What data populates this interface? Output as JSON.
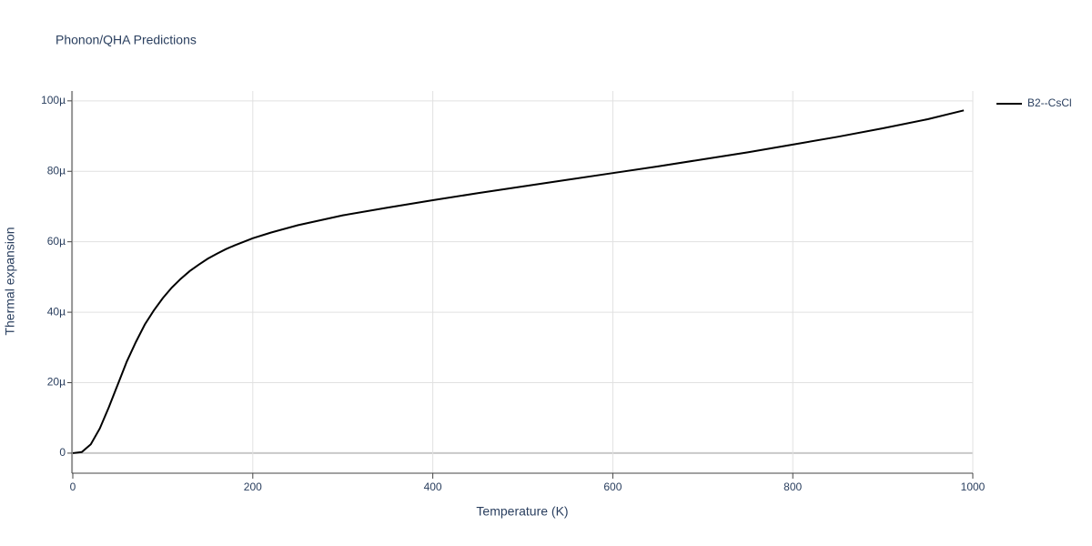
{
  "chart_data": {
    "type": "line",
    "title": "Phonon/QHA Predictions",
    "x_label": "Temperature (K)",
    "y_label": "Thermal expansion",
    "x": [
      0,
      10,
      20,
      30,
      40,
      50,
      60,
      70,
      80,
      90,
      100,
      110,
      120,
      130,
      140,
      150,
      160,
      170,
      180,
      190,
      200,
      220,
      250,
      300,
      350,
      400,
      450,
      500,
      550,
      600,
      650,
      700,
      750,
      800,
      850,
      900,
      950,
      990
    ],
    "series": [
      {
        "name": "B2--CsCl",
        "color": "#000000",
        "values": [
          0,
          0.3,
          2.5,
          7,
          13,
          19.5,
          26,
          31.5,
          36.5,
          40.5,
          44,
          47,
          49.5,
          51.7,
          53.5,
          55.2,
          56.6,
          57.9,
          59,
          60,
          61,
          62.6,
          64.7,
          67.5,
          69.7,
          71.8,
          73.8,
          75.7,
          77.6,
          79.5,
          81.4,
          83.4,
          85.4,
          87.6,
          89.8,
          92.2,
          94.8,
          97.3
        ]
      }
    ],
    "xlim": [
      0,
      1000
    ],
    "xticks": [
      0,
      200,
      400,
      600,
      800,
      1000
    ],
    "ylim": [
      -5.7,
      102.8
    ],
    "yticks": [
      0,
      {
        "value": 20,
        "label": "20µ"
      },
      {
        "value": 40,
        "label": "40µ"
      },
      {
        "value": 60,
        "label": "60µ"
      },
      {
        "value": 80,
        "label": "80µ"
      },
      {
        "value": 100,
        "label": "100µ"
      }
    ],
    "grid": true,
    "legend": "right"
  }
}
